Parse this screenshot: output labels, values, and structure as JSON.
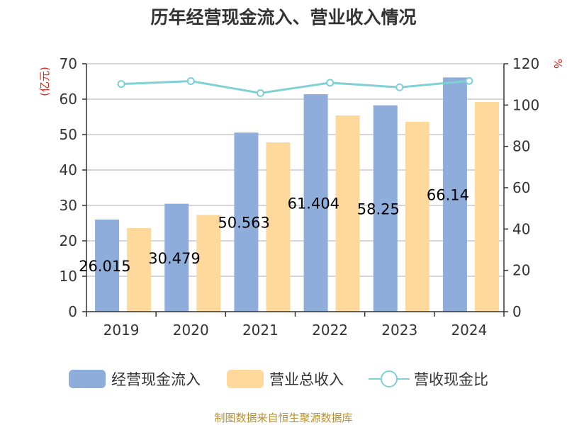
{
  "colors": {
    "cashflow": "#8eaddb",
    "revenue": "#fed99b",
    "ratio": "#7fd1d4",
    "grid": "#c8c8c8",
    "axis": "#333333",
    "unit": "#e0201b",
    "source": "#b8902f"
  },
  "legend": {
    "cashflow": "经营现金流入",
    "revenue": "营业总收入",
    "ratio": "营收现金比"
  },
  "source_text": "制图数据来自恒生聚源数据库",
  "chart_data": {
    "type": "bar",
    "title": "历年经营现金流入、营业收入情况",
    "ylabel": "(亿元)",
    "y2label": "%",
    "ylim": [
      0,
      70
    ],
    "y2lim": [
      0,
      120
    ],
    "yticks": [
      0,
      10,
      20,
      30,
      40,
      50,
      60,
      70
    ],
    "y2ticks": [
      0,
      20,
      40,
      60,
      80,
      100,
      120
    ],
    "categories": [
      "2019",
      "2020",
      "2021",
      "2022",
      "2023",
      "2024"
    ],
    "grid": true,
    "legend_position": "bottom",
    "series": [
      {
        "name": "经营现金流入",
        "kind": "bar",
        "axis": "left",
        "values": [
          26.015,
          30.479,
          50.563,
          61.404,
          58.25,
          66.14
        ],
        "labels": [
          "26.015",
          "30.479",
          "50.563",
          "61.404",
          "58.25",
          "66.14"
        ]
      },
      {
        "name": "营业总收入",
        "kind": "bar",
        "axis": "left",
        "values": [
          23.6,
          27.3,
          47.8,
          55.4,
          53.6,
          59.2
        ]
      },
      {
        "name": "营收现金比",
        "kind": "line",
        "axis": "right",
        "values": [
          110.2,
          111.6,
          105.8,
          110.8,
          108.6,
          111.7
        ]
      }
    ]
  }
}
